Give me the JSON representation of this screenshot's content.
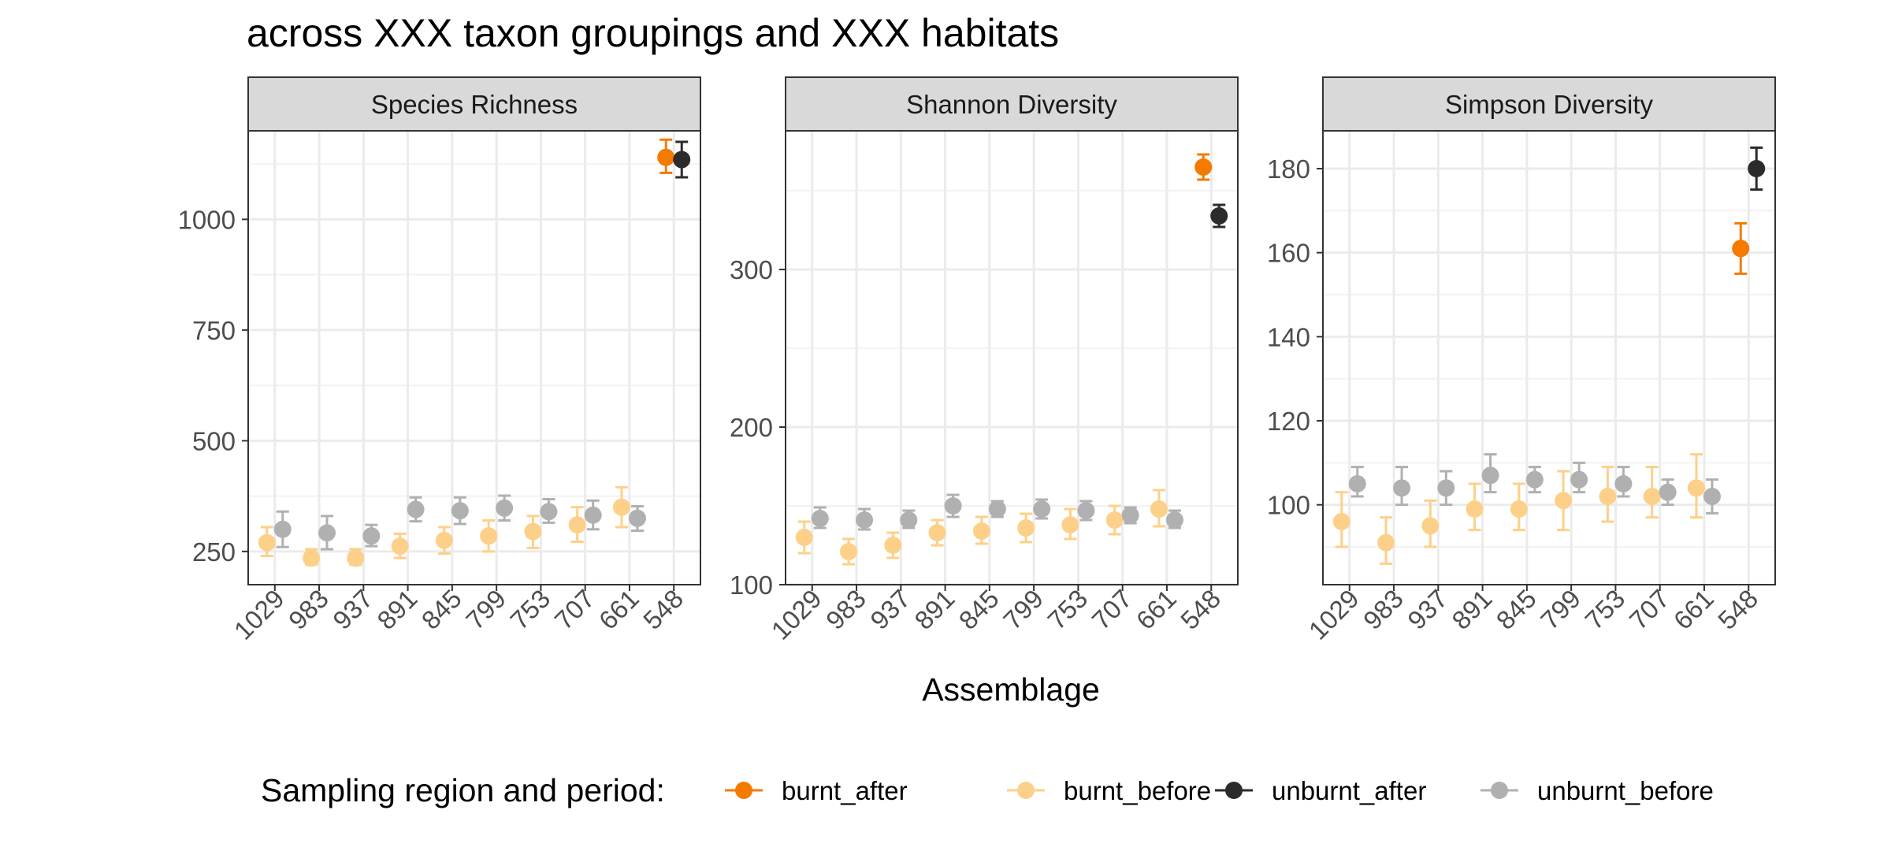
{
  "title": "across XXX taxon groupings and XXX habitats",
  "xlabel": "Assemblage",
  "legend": {
    "title": "Sampling region and period:",
    "items": [
      {
        "key": "burnt_after",
        "label": "burnt_after",
        "color": "#F47A00"
      },
      {
        "key": "burnt_before",
        "label": "burnt_before",
        "color": "#FDD08A"
      },
      {
        "key": "unburnt_after",
        "label": "unburnt_after",
        "color": "#2B2B2B"
      },
      {
        "key": "unburnt_before",
        "label": "unburnt_before",
        "color": "#B0B0B0"
      }
    ]
  },
  "chart_data": [
    {
      "type": "scatter",
      "panel": "Species Richness",
      "categories": [
        "1029",
        "983",
        "937",
        "891",
        "845",
        "799",
        "753",
        "707",
        "661",
        "548"
      ],
      "ylim": [
        175,
        1200
      ],
      "yticks": [
        250,
        500,
        750,
        1000
      ],
      "series": [
        {
          "name": "burnt_after",
          "points": [
            {
              "x": "548",
              "y": 1140,
              "lo": 1105,
              "hi": 1180
            }
          ]
        },
        {
          "name": "unburnt_after",
          "points": [
            {
              "x": "548",
              "y": 1135,
              "lo": 1095,
              "hi": 1175
            }
          ]
        },
        {
          "name": "burnt_before",
          "points": [
            {
              "x": "1029",
              "y": 270,
              "lo": 240,
              "hi": 305
            },
            {
              "x": "983",
              "y": 235,
              "lo": 220,
              "hi": 255
            },
            {
              "x": "937",
              "y": 235,
              "lo": 220,
              "hi": 255
            },
            {
              "x": "891",
              "y": 262,
              "lo": 235,
              "hi": 290
            },
            {
              "x": "845",
              "y": 275,
              "lo": 245,
              "hi": 305
            },
            {
              "x": "799",
              "y": 285,
              "lo": 250,
              "hi": 320
            },
            {
              "x": "753",
              "y": 295,
              "lo": 258,
              "hi": 330
            },
            {
              "x": "707",
              "y": 310,
              "lo": 272,
              "hi": 350
            },
            {
              "x": "661",
              "y": 350,
              "lo": 305,
              "hi": 395
            }
          ]
        },
        {
          "name": "unburnt_before",
          "points": [
            {
              "x": "1029",
              "y": 300,
              "lo": 260,
              "hi": 340
            },
            {
              "x": "983",
              "y": 292,
              "lo": 255,
              "hi": 330
            },
            {
              "x": "937",
              "y": 285,
              "lo": 262,
              "hi": 310
            },
            {
              "x": "891",
              "y": 345,
              "lo": 318,
              "hi": 372
            },
            {
              "x": "845",
              "y": 342,
              "lo": 312,
              "hi": 372
            },
            {
              "x": "799",
              "y": 348,
              "lo": 320,
              "hi": 376
            },
            {
              "x": "753",
              "y": 340,
              "lo": 315,
              "hi": 368
            },
            {
              "x": "707",
              "y": 332,
              "lo": 300,
              "hi": 365
            },
            {
              "x": "661",
              "y": 325,
              "lo": 297,
              "hi": 352
            }
          ]
        }
      ]
    },
    {
      "type": "scatter",
      "panel": "Shannon Diversity",
      "categories": [
        "1029",
        "983",
        "937",
        "891",
        "845",
        "799",
        "753",
        "707",
        "661",
        "548"
      ],
      "ylim": [
        100,
        388
      ],
      "yticks": [
        100,
        200,
        300
      ],
      "series": [
        {
          "name": "burnt_after",
          "points": [
            {
              "x": "548",
              "y": 365,
              "lo": 357,
              "hi": 373
            }
          ]
        },
        {
          "name": "unburnt_after",
          "points": [
            {
              "x": "548",
              "y": 334,
              "lo": 327,
              "hi": 341
            }
          ]
        },
        {
          "name": "burnt_before",
          "points": [
            {
              "x": "1029",
              "y": 130,
              "lo": 120,
              "hi": 140
            },
            {
              "x": "983",
              "y": 121,
              "lo": 113,
              "hi": 129
            },
            {
              "x": "937",
              "y": 125,
              "lo": 117,
              "hi": 133
            },
            {
              "x": "891",
              "y": 133,
              "lo": 125,
              "hi": 141
            },
            {
              "x": "845",
              "y": 134,
              "lo": 126,
              "hi": 143
            },
            {
              "x": "799",
              "y": 136,
              "lo": 127,
              "hi": 145
            },
            {
              "x": "753",
              "y": 138,
              "lo": 129,
              "hi": 148
            },
            {
              "x": "707",
              "y": 141,
              "lo": 132,
              "hi": 150
            },
            {
              "x": "661",
              "y": 148,
              "lo": 137,
              "hi": 160
            }
          ]
        },
        {
          "name": "unburnt_before",
          "points": [
            {
              "x": "1029",
              "y": 142,
              "lo": 136,
              "hi": 149
            },
            {
              "x": "983",
              "y": 141,
              "lo": 135,
              "hi": 148
            },
            {
              "x": "937",
              "y": 141,
              "lo": 136,
              "hi": 147
            },
            {
              "x": "891",
              "y": 150,
              "lo": 143,
              "hi": 157
            },
            {
              "x": "845",
              "y": 148,
              "lo": 143,
              "hi": 153
            },
            {
              "x": "799",
              "y": 148,
              "lo": 142,
              "hi": 154
            },
            {
              "x": "753",
              "y": 147,
              "lo": 141,
              "hi": 153
            },
            {
              "x": "707",
              "y": 144,
              "lo": 139,
              "hi": 149
            },
            {
              "x": "661",
              "y": 141,
              "lo": 136,
              "hi": 147
            }
          ]
        }
      ]
    },
    {
      "type": "scatter",
      "panel": "Simpson Diversity",
      "categories": [
        "1029",
        "983",
        "937",
        "891",
        "845",
        "799",
        "753",
        "707",
        "661",
        "548"
      ],
      "ylim": [
        81,
        189
      ],
      "yticks": [
        100,
        120,
        140,
        160,
        180
      ],
      "series": [
        {
          "name": "burnt_after",
          "points": [
            {
              "x": "548",
              "y": 161,
              "lo": 155,
              "hi": 167
            }
          ]
        },
        {
          "name": "unburnt_after",
          "points": [
            {
              "x": "548",
              "y": 180,
              "lo": 175,
              "hi": 185
            }
          ]
        },
        {
          "name": "burnt_before",
          "points": [
            {
              "x": "1029",
              "y": 96,
              "lo": 90,
              "hi": 103
            },
            {
              "x": "983",
              "y": 91,
              "lo": 86,
              "hi": 97
            },
            {
              "x": "937",
              "y": 95,
              "lo": 90,
              "hi": 101
            },
            {
              "x": "891",
              "y": 99,
              "lo": 94,
              "hi": 105
            },
            {
              "x": "845",
              "y": 99,
              "lo": 94,
              "hi": 105
            },
            {
              "x": "799",
              "y": 101,
              "lo": 94,
              "hi": 108
            },
            {
              "x": "753",
              "y": 102,
              "lo": 96,
              "hi": 109
            },
            {
              "x": "707",
              "y": 102,
              "lo": 97,
              "hi": 109
            },
            {
              "x": "661",
              "y": 104,
              "lo": 97,
              "hi": 112
            }
          ]
        },
        {
          "name": "unburnt_before",
          "points": [
            {
              "x": "1029",
              "y": 105,
              "lo": 102,
              "hi": 109
            },
            {
              "x": "983",
              "y": 104,
              "lo": 100,
              "hi": 109
            },
            {
              "x": "937",
              "y": 104,
              "lo": 100,
              "hi": 108
            },
            {
              "x": "891",
              "y": 107,
              "lo": 103,
              "hi": 112
            },
            {
              "x": "845",
              "y": 106,
              "lo": 103,
              "hi": 109
            },
            {
              "x": "799",
              "y": 106,
              "lo": 103,
              "hi": 110
            },
            {
              "x": "753",
              "y": 105,
              "lo": 102,
              "hi": 109
            },
            {
              "x": "707",
              "y": 103,
              "lo": 100,
              "hi": 106
            },
            {
              "x": "661",
              "y": 102,
              "lo": 98,
              "hi": 106
            }
          ]
        }
      ]
    }
  ]
}
